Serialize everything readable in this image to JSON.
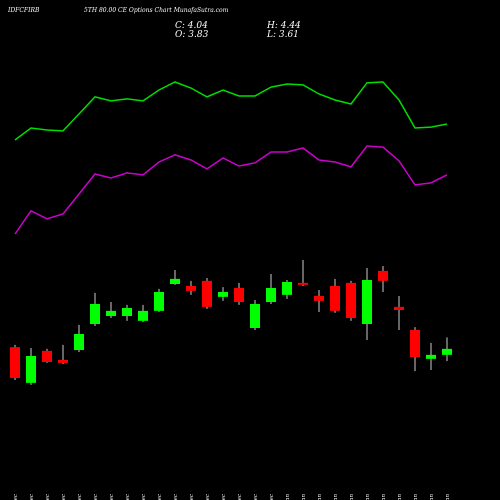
{
  "chart_data": {
    "type": "candlestick",
    "title": "IDFCFIRB",
    "subtitle": "5TH 80.00 CE Options Chart MunafaSutra.com",
    "stats": {
      "close": "C: 4.04",
      "high": "H: 4.44",
      "open": "O: 3.83",
      "low": "L: 3.61"
    },
    "categories": [
      "05 Dec",
      "09 Dec",
      "10 Dec",
      "11 Dec",
      "12 Dec",
      "13 Dec",
      "16 Dec",
      "17 Dec",
      "18 Dec",
      "19 Dec",
      "20 Dec",
      "23 Dec",
      "24 Dec",
      "26 Dec",
      "27 Dec",
      "30 Dec",
      "31 Dec",
      "01 Jan",
      "02 Jan",
      "03 Jan",
      "06 Jan",
      "07 Jan",
      "08 Jan",
      "09 Jan",
      "10 Jan",
      "13 Jan",
      "14 Jan",
      "15 Jan"
    ],
    "open": [
      4.1,
      2.85,
      3.97,
      3.65,
      4.0,
      4.91,
      5.19,
      5.19,
      5.02,
      5.37,
      6.31,
      6.24,
      6.42,
      5.86,
      6.17,
      4.77,
      5.68,
      5.93,
      6.35,
      5.89,
      6.24,
      6.35,
      4.91,
      6.77,
      5.51,
      4.7,
      3.69,
      3.83
    ],
    "high": [
      4.18,
      4.07,
      4.04,
      4.18,
      4.88,
      6.0,
      5.68,
      5.58,
      5.58,
      6.14,
      6.8,
      6.42,
      6.52,
      6.2,
      6.35,
      5.75,
      6.66,
      6.45,
      7.15,
      6.1,
      6.49,
      6.42,
      6.87,
      6.94,
      5.89,
      4.8,
      4.25,
      4.44
    ],
    "low": [
      2.95,
      2.78,
      3.55,
      3.51,
      3.93,
      4.84,
      5.12,
      5.02,
      4.98,
      5.33,
      6.28,
      5.93,
      5.44,
      5.72,
      5.58,
      4.7,
      5.61,
      5.79,
      6.24,
      5.33,
      5.3,
      5.02,
      4.35,
      6.03,
      4.7,
      3.26,
      3.3,
      3.61
    ],
    "close": [
      3.02,
      3.79,
      3.58,
      3.55,
      4.56,
      5.61,
      5.37,
      5.47,
      5.37,
      6.03,
      6.49,
      6.07,
      5.51,
      6.03,
      5.68,
      5.61,
      6.17,
      6.38,
      6.28,
      5.72,
      5.37,
      5.12,
      6.45,
      6.42,
      5.4,
      3.75,
      3.83,
      4.04
    ],
    "up_color": "#00ff00",
    "down_color": "#ff0000",
    "lines": [
      {
        "color": "#00dd00",
        "values": [
          11.35,
          11.77,
          11.7,
          11.67,
          12.26,
          12.86,
          12.72,
          12.79,
          12.72,
          13.1,
          13.38,
          13.17,
          12.86,
          13.1,
          12.89,
          12.89,
          13.2,
          13.31,
          13.28,
          12.96,
          12.75,
          12.61,
          13.35,
          13.38,
          12.75,
          11.77,
          11.8,
          11.91
        ]
      },
      {
        "color": "#cc00cc",
        "values": [
          8.06,
          8.87,
          8.59,
          8.76,
          9.46,
          10.16,
          10.02,
          10.2,
          10.13,
          10.58,
          10.83,
          10.65,
          10.34,
          10.72,
          10.44,
          10.55,
          10.93,
          10.93,
          11.07,
          10.65,
          10.58,
          10.41,
          11.14,
          11.1,
          10.62,
          9.78,
          9.85,
          10.13
        ]
      }
    ],
    "ylim": [
      -1.25,
      16.25
    ]
  }
}
